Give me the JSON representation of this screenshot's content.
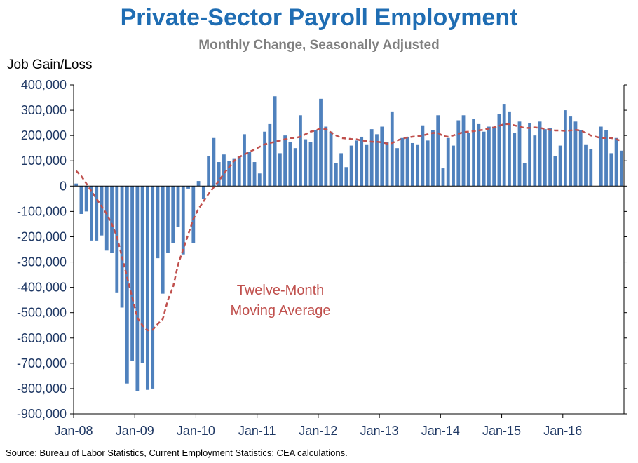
{
  "chart_data": {
    "type": "bar",
    "title": "Private-Sector Payroll Employment",
    "subtitle": "Monthly Change, Seasonally Adjusted",
    "ylabel": "Job Gain/Loss",
    "xlabel": "",
    "ylim": [
      -900000,
      400000
    ],
    "yticks": [
      400000,
      300000,
      200000,
      100000,
      0,
      -100000,
      -200000,
      -300000,
      -400000,
      -500000,
      -600000,
      -700000,
      -800000,
      -900000
    ],
    "ytick_labels": [
      "400,000",
      "300,000",
      "200,000",
      "100,000",
      "0",
      "-100,000",
      "-200,000",
      "-300,000",
      "-400,000",
      "-500,000",
      "-600,000",
      "-700,000",
      "-800,000",
      "-900,000"
    ],
    "xtick_labels": [
      "Jan-08",
      "Jan-09",
      "Jan-10",
      "Jan-11",
      "Jan-12",
      "Jan-13",
      "Jan-14",
      "Jan-15",
      "Jan-16"
    ],
    "start_month": "Jan-08",
    "grid": false,
    "colors": {
      "bars": "#4f81bd",
      "moving_average": "#c0504d",
      "title": "#1f6db3",
      "subtitle": "#7f7f7f",
      "axis_labels": "#1f3864"
    },
    "series": [
      {
        "type": "bar",
        "values": [
          10000,
          -110000,
          -100000,
          -215000,
          -215000,
          -195000,
          -255000,
          -265000,
          -420000,
          -480000,
          -780000,
          -690000,
          -810000,
          -700000,
          -805000,
          -800000,
          -285000,
          -425000,
          -265000,
          -225000,
          -160000,
          -270000,
          -10000,
          -225000,
          20000,
          -50000,
          120000,
          190000,
          95000,
          125000,
          100000,
          110000,
          120000,
          205000,
          135000,
          95000,
          50000,
          215000,
          245000,
          355000,
          130000,
          200000,
          175000,
          150000,
          280000,
          185000,
          175000,
          220000,
          345000,
          235000,
          215000,
          90000,
          130000,
          75000,
          160000,
          180000,
          195000,
          165000,
          225000,
          205000,
          235000,
          175000,
          295000,
          150000,
          190000,
          195000,
          170000,
          165000,
          240000,
          180000,
          220000,
          280000,
          70000,
          190000,
          160000,
          260000,
          280000,
          210000,
          265000,
          245000,
          215000,
          235000,
          235000,
          285000,
          325000,
          295000,
          210000,
          255000,
          90000,
          250000,
          200000,
          255000,
          225000,
          230000,
          120000,
          160000,
          300000,
          275000,
          255000,
          220000,
          165000,
          145000,
          0,
          235000,
          220000,
          130000,
          190000,
          140000
        ]
      },
      {
        "name": "Twelve-Month Moving Average",
        "type": "line",
        "style": "dashed",
        "values": [
          60000,
          40000,
          10000,
          -20000,
          -50000,
          -80000,
          -110000,
          -150000,
          -200000,
          -280000,
          -360000,
          -440000,
          -520000,
          -550000,
          -570000,
          -568000,
          -545000,
          -525000,
          -450000,
          -400000,
          -310000,
          -250000,
          -190000,
          -130000,
          -90000,
          -60000,
          -30000,
          -5000,
          20000,
          50000,
          75000,
          100000,
          115000,
          125000,
          135000,
          145000,
          155000,
          165000,
          170000,
          175000,
          180000,
          185000,
          190000,
          190000,
          195000,
          205000,
          215000,
          220000,
          228000,
          225000,
          212000,
          200000,
          190000,
          188000,
          186000,
          185000,
          180000,
          178000,
          175000,
          175000,
          173000,
          168000,
          170000,
          180000,
          188000,
          192000,
          195000,
          197000,
          200000,
          205000,
          210000,
          210000,
          198000,
          195000,
          200000,
          207000,
          213000,
          215000,
          217000,
          220000,
          223000,
          227000,
          232000,
          238000,
          245000,
          245000,
          240000,
          235000,
          230000,
          230000,
          232000,
          230000,
          226000,
          222000,
          220000,
          220000,
          218000,
          220000,
          222000,
          220000,
          210000,
          200000,
          195000,
          190000,
          190000,
          190000,
          185000,
          178000
        ]
      }
    ],
    "annotation": "Twelve-Month\nMoving Average",
    "source": "Source: Bureau of Labor Statistics, Current Employment Statistics; CEA calculations."
  },
  "annotation_lines": [
    "Twelve-Month",
    "Moving Average"
  ]
}
